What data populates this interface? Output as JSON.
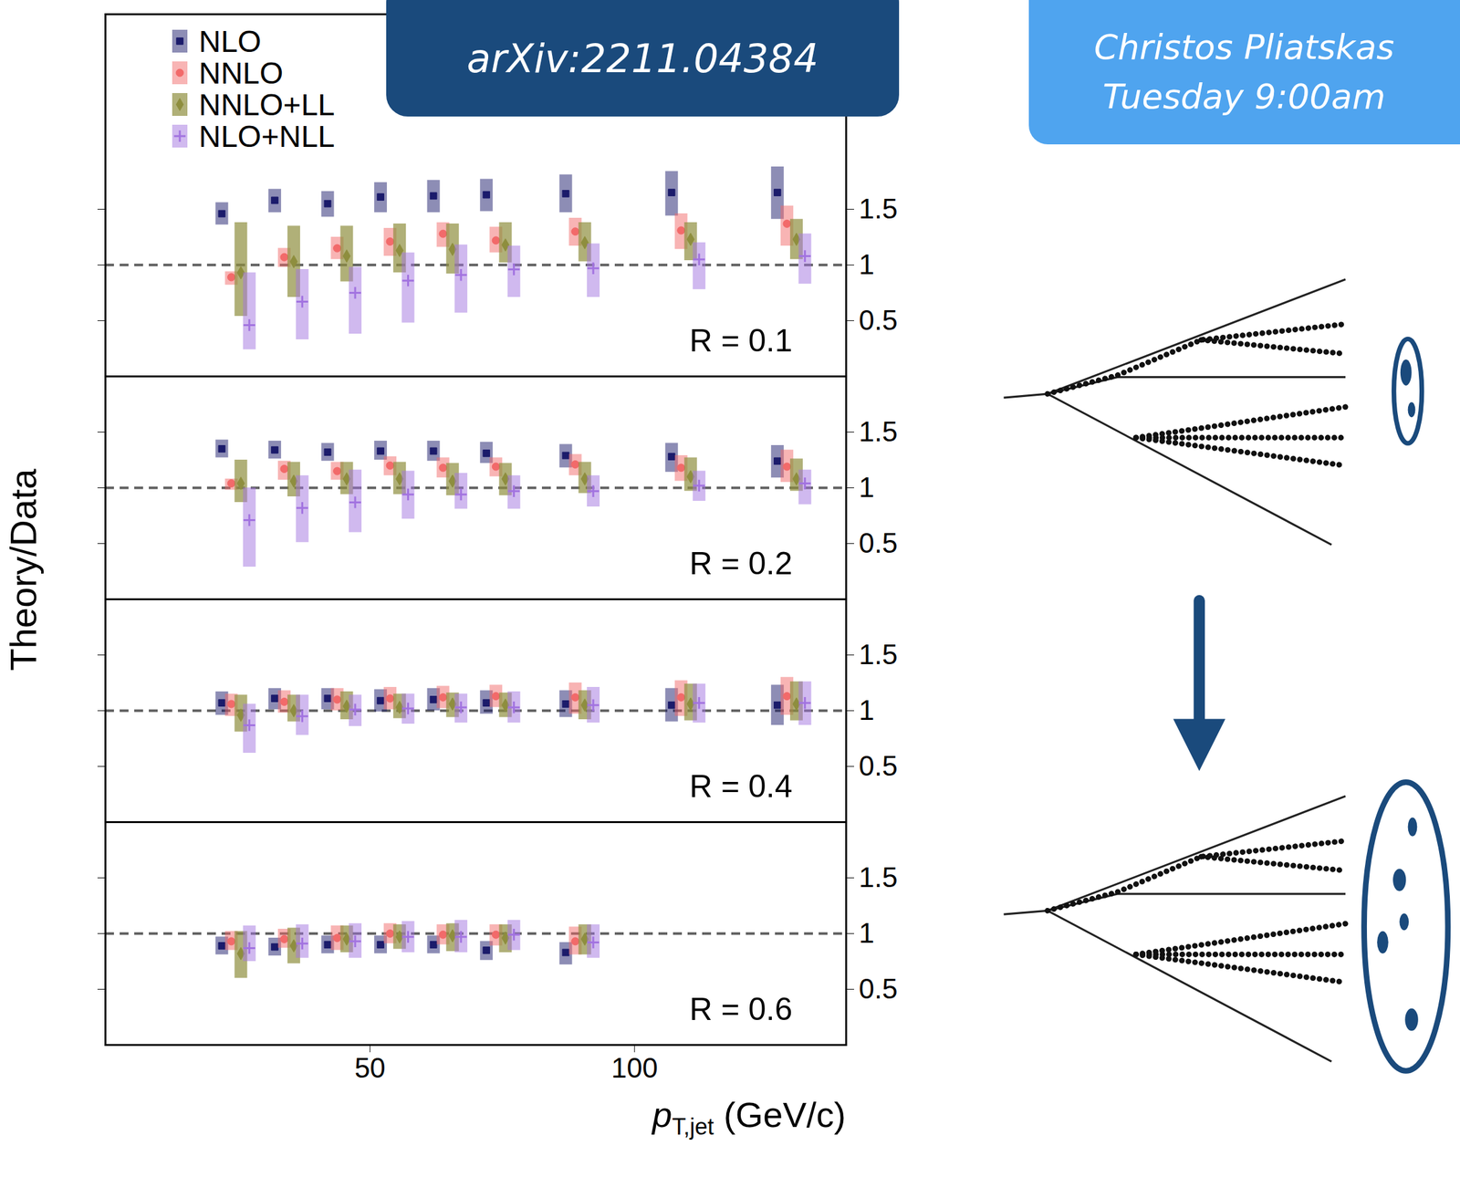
{
  "chart_data": {
    "type": "scatter",
    "y_label": "Theory/Data",
    "x_label": {
      "main": "p",
      "sub": "T,jet",
      "rest": "(GeV/c)"
    },
    "xlim": [
      0,
      140
    ],
    "xticks": [
      50,
      100
    ],
    "yticks": [
      0.5,
      1,
      1.5
    ],
    "reference_line": 1,
    "legend": "top-left",
    "badges": [
      [
        "arXiv:2211.04384"
      ],
      [
        "Christos Pliatskas",
        "Tuesday 9:00am"
      ]
    ],
    "series": [
      {
        "name": "NLO",
        "color": "#1b1b6b",
        "marker": "square"
      },
      {
        "name": "NNLO",
        "color": "#f26a6a",
        "marker": "circle"
      },
      {
        "name": "NNLO+LL",
        "color": "#8e8e3e",
        "marker": "diamond"
      },
      {
        "name": "NLO+NLL",
        "color": "#a273e0",
        "marker": "plus"
      }
    ],
    "panels": [
      {
        "label": "R = 0.1",
        "ylim": [
          0,
          3.25
        ],
        "series": [
          {
            "name": "NLO",
            "x": [
              22,
              32,
              42,
              52,
              62,
              72,
              87,
              107,
              127
            ],
            "values": [
              1.46,
              1.58,
              1.55,
              1.61,
              1.62,
              1.63,
              1.64,
              1.65,
              1.65
            ],
            "low": [
              1.36,
              1.47,
              1.43,
              1.47,
              1.47,
              1.48,
              1.47,
              1.44,
              1.41
            ],
            "high": [
              1.56,
              1.68,
              1.66,
              1.74,
              1.76,
              1.77,
              1.81,
              1.84,
              1.88
            ]
          },
          {
            "name": "NNLO",
            "x": [
              23.8,
              33.8,
              43.8,
              53.8,
              63.8,
              73.8,
              88.8,
              108.8,
              128.8
            ],
            "values": [
              0.89,
              1.07,
              1.15,
              1.21,
              1.28,
              1.22,
              1.3,
              1.31,
              1.37
            ],
            "low": [
              0.82,
              0.98,
              1.05,
              1.08,
              1.16,
              1.11,
              1.17,
              1.14,
              1.17
            ],
            "high": [
              0.94,
              1.15,
              1.25,
              1.33,
              1.38,
              1.34,
              1.42,
              1.46,
              1.53
            ]
          },
          {
            "name": "NNLO+LL",
            "x": [
              25.6,
              35.6,
              45.6,
              55.6,
              65.6,
              75.6,
              90.6,
              110.6,
              130.6
            ],
            "values": [
              0.93,
              1.03,
              1.08,
              1.13,
              1.14,
              1.18,
              1.2,
              1.23,
              1.23
            ],
            "low": [
              0.54,
              0.71,
              0.85,
              0.93,
              0.92,
              1.02,
              1.03,
              1.04,
              1.05
            ],
            "high": [
              1.38,
              1.35,
              1.35,
              1.37,
              1.37,
              1.38,
              1.38,
              1.38,
              1.41
            ]
          },
          {
            "name": "NLO+NLL",
            "x": [
              27.2,
              37.2,
              47.2,
              57.2,
              67.2,
              77.2,
              92.2,
              112.2,
              132.2
            ],
            "values": [
              0.46,
              0.67,
              0.75,
              0.86,
              0.91,
              0.96,
              0.97,
              1.05,
              1.08
            ],
            "low": [
              0.24,
              0.33,
              0.38,
              0.48,
              0.57,
              0.71,
              0.71,
              0.78,
              0.83
            ],
            "high": [
              0.93,
              0.96,
              0.98,
              1.11,
              1.18,
              1.17,
              1.19,
              1.2,
              1.28
            ]
          }
        ]
      },
      {
        "label": "R = 0.2",
        "ylim": [
          0,
          2
        ],
        "series": [
          {
            "name": "NLO",
            "x": [
              22,
              32,
              42,
              52,
              62,
              72,
              87,
              107,
              127
            ],
            "values": [
              1.35,
              1.34,
              1.32,
              1.33,
              1.33,
              1.31,
              1.29,
              1.28,
              1.24
            ],
            "low": [
              1.27,
              1.26,
              1.24,
              1.25,
              1.24,
              1.22,
              1.18,
              1.14,
              1.09
            ],
            "high": [
              1.43,
              1.42,
              1.4,
              1.42,
              1.42,
              1.41,
              1.39,
              1.4,
              1.38
            ]
          },
          {
            "name": "NNLO",
            "x": [
              23.8,
              33.8,
              43.8,
              53.8,
              63.8,
              73.8,
              88.8,
              108.8,
              128.8
            ],
            "values": [
              1.04,
              1.17,
              1.15,
              1.2,
              1.18,
              1.19,
              1.21,
              1.18,
              1.19
            ],
            "low": [
              0.98,
              1.07,
              1.07,
              1.11,
              1.09,
              1.1,
              1.11,
              1.06,
              1.05
            ],
            "high": [
              1.08,
              1.24,
              1.23,
              1.28,
              1.27,
              1.27,
              1.3,
              1.29,
              1.34
            ]
          },
          {
            "name": "NNLO+LL",
            "x": [
              25.6,
              35.6,
              45.6,
              55.6,
              65.6,
              75.6,
              90.6,
              110.6,
              130.6
            ],
            "values": [
              1.04,
              1.06,
              1.08,
              1.08,
              1.06,
              1.08,
              1.08,
              1.1,
              1.08
            ],
            "low": [
              0.87,
              0.92,
              0.94,
              0.94,
              0.93,
              0.93,
              0.95,
              0.97,
              0.97
            ],
            "high": [
              1.25,
              1.23,
              1.23,
              1.23,
              1.22,
              1.22,
              1.23,
              1.27,
              1.26
            ]
          },
          {
            "name": "NLO+NLL",
            "x": [
              27.2,
              37.2,
              47.2,
              57.2,
              67.2,
              77.2,
              92.2,
              112.2,
              132.2
            ],
            "values": [
              0.71,
              0.82,
              0.87,
              0.94,
              0.94,
              0.97,
              0.97,
              1.02,
              1.04
            ],
            "low": [
              0.29,
              0.51,
              0.6,
              0.72,
              0.81,
              0.81,
              0.83,
              0.88,
              0.85
            ],
            "high": [
              1.0,
              1.11,
              1.16,
              1.15,
              1.13,
              1.11,
              1.11,
              1.15,
              1.16
            ]
          }
        ]
      },
      {
        "label": "R = 0.4",
        "ylim": [
          0,
          2
        ],
        "series": [
          {
            "name": "NLO",
            "x": [
              22,
              32,
              42,
              52,
              62,
              72,
              87,
              107,
              127
            ],
            "values": [
              1.07,
              1.11,
              1.11,
              1.09,
              1.1,
              1.07,
              1.06,
              1.05,
              1.05
            ],
            "low": [
              0.96,
              1.01,
              1.01,
              0.99,
              1.0,
              0.97,
              0.94,
              0.9,
              0.87
            ],
            "high": [
              1.17,
              1.2,
              1.2,
              1.19,
              1.2,
              1.18,
              1.18,
              1.2,
              1.23
            ]
          },
          {
            "name": "NNLO",
            "x": [
              23.8,
              33.8,
              43.8,
              53.8,
              63.8,
              73.8,
              88.8,
              108.8,
              128.8
            ],
            "values": [
              1.06,
              1.08,
              1.1,
              1.11,
              1.12,
              1.13,
              1.12,
              1.12,
              1.13
            ],
            "low": [
              0.95,
              0.98,
              1.0,
              1.01,
              1.02,
              1.03,
              0.97,
              0.95,
              0.96
            ],
            "high": [
              1.15,
              1.18,
              1.2,
              1.21,
              1.22,
              1.23,
              1.25,
              1.27,
              1.3
            ]
          },
          {
            "name": "NNLO+LL",
            "x": [
              25.6,
              35.6,
              45.6,
              55.6,
              65.6,
              75.6,
              90.6,
              110.6,
              130.6
            ],
            "values": [
              0.96,
              1.0,
              1.04,
              1.03,
              1.06,
              1.05,
              1.05,
              1.06,
              1.06
            ],
            "low": [
              0.81,
              0.9,
              0.92,
              0.93,
              0.94,
              0.94,
              0.92,
              0.91,
              0.91
            ],
            "high": [
              1.14,
              1.14,
              1.17,
              1.15,
              1.16,
              1.16,
              1.18,
              1.24,
              1.26
            ]
          },
          {
            "name": "NLO+NLL",
            "x": [
              27.2,
              37.2,
              47.2,
              57.2,
              67.2,
              77.2,
              92.2,
              112.2,
              132.2
            ],
            "values": [
              0.87,
              0.95,
              1.01,
              1.02,
              1.03,
              1.03,
              1.05,
              1.07,
              1.07
            ],
            "low": [
              0.62,
              0.78,
              0.86,
              0.88,
              0.89,
              0.89,
              0.89,
              0.89,
              0.87
            ],
            "high": [
              1.06,
              1.14,
              1.14,
              1.15,
              1.15,
              1.17,
              1.21,
              1.24,
              1.26
            ]
          }
        ]
      },
      {
        "label": "R = 0.6",
        "ylim": [
          0,
          2
        ],
        "series": [
          {
            "name": "NLO",
            "x": [
              22,
              32,
              42,
              52,
              62,
              72,
              87
            ],
            "values": [
              0.89,
              0.88,
              0.9,
              0.9,
              0.9,
              0.85,
              0.83
            ],
            "low": [
              0.81,
              0.8,
              0.82,
              0.82,
              0.82,
              0.76,
              0.72
            ],
            "high": [
              0.97,
              0.96,
              0.98,
              0.98,
              0.98,
              0.93,
              0.92
            ]
          },
          {
            "name": "NNLO",
            "x": [
              23.8,
              33.8,
              43.8,
              53.8,
              63.8,
              73.8,
              88.8
            ],
            "values": [
              0.93,
              0.95,
              0.96,
              1.0,
              0.99,
              0.99,
              0.93
            ],
            "low": [
              0.85,
              0.87,
              0.85,
              0.91,
              0.9,
              0.89,
              0.81
            ],
            "high": [
              1.02,
              1.04,
              1.07,
              1.09,
              1.08,
              1.08,
              1.06
            ]
          },
          {
            "name": "NNLO+LL",
            "x": [
              25.6,
              35.6,
              45.6,
              55.6,
              65.6,
              75.6,
              90.6
            ],
            "values": [
              0.82,
              0.89,
              0.95,
              0.97,
              0.98,
              0.96,
              0.95
            ],
            "low": [
              0.6,
              0.73,
              0.83,
              0.86,
              0.84,
              0.83,
              0.81
            ],
            "high": [
              1.02,
              1.05,
              1.07,
              1.08,
              1.09,
              1.08,
              1.08
            ]
          },
          {
            "name": "NLO+NLL",
            "x": [
              27.2,
              37.2,
              47.2,
              57.2,
              67.2,
              77.2,
              92.2
            ],
            "values": [
              0.87,
              0.91,
              0.93,
              0.97,
              0.97,
              0.99,
              0.92
            ],
            "low": [
              0.75,
              0.78,
              0.78,
              0.83,
              0.83,
              0.85,
              0.78
            ],
            "high": [
              1.07,
              1.08,
              1.09,
              1.11,
              1.12,
              1.12,
              1.08
            ]
          }
        ]
      }
    ]
  }
}
